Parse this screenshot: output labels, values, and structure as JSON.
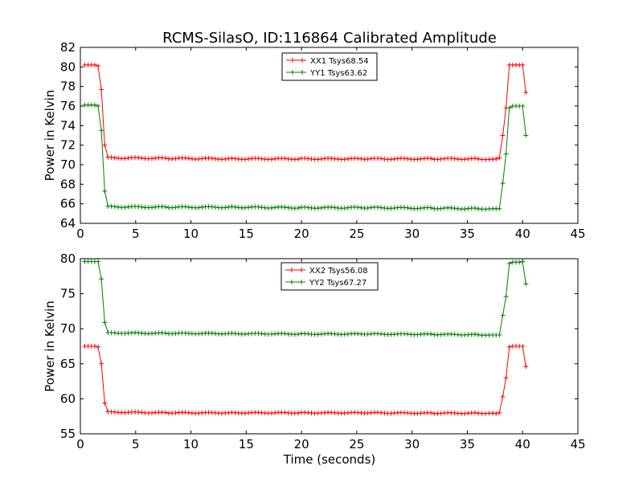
{
  "title": "RCMS-SilasO, ID:116864 Calibrated Amplitude",
  "xlabel": "Time (seconds)",
  "colors": {
    "red": "#ff0000",
    "green": "#008000"
  },
  "chart_data": [
    {
      "type": "line",
      "title": "RCMS-SilasO, ID:116864 Calibrated Amplitude",
      "xlabel": "",
      "ylabel": "Power in Kelvin",
      "xlim": [
        0,
        45
      ],
      "ylim": [
        64,
        82
      ],
      "xticks": [
        0,
        5,
        10,
        15,
        20,
        25,
        30,
        35,
        40,
        45
      ],
      "yticks": [
        64,
        66,
        68,
        70,
        72,
        74,
        76,
        78,
        80,
        82
      ],
      "grid": false,
      "legend_position": "top-center",
      "series": [
        {
          "name": "XX1 Tsys68.54",
          "color": "#ff0000",
          "x": [
            0.4,
            0.7,
            1.0,
            1.3,
            1.6,
            1.9,
            2.2,
            2.5,
            8.0,
            14.0,
            20.0,
            26.0,
            32.0,
            36.0,
            37.3,
            37.6,
            37.9,
            38.2,
            38.5,
            38.8,
            39.1,
            39.4,
            39.7,
            40.0,
            40.3
          ],
          "values": [
            80.2,
            80.2,
            80.2,
            80.2,
            80.1,
            77.7,
            72.0,
            70.7,
            70.65,
            70.6,
            70.6,
            70.6,
            70.6,
            70.6,
            70.55,
            70.6,
            70.7,
            73.0,
            75.8,
            80.2,
            80.2,
            80.2,
            80.2,
            80.2,
            77.4
          ]
        },
        {
          "name": "YY1 Tsys63.62",
          "color": "#008000",
          "x": [
            0.4,
            0.7,
            1.0,
            1.3,
            1.6,
            1.9,
            2.2,
            2.5,
            8.0,
            14.0,
            20.0,
            26.0,
            32.0,
            36.0,
            37.3,
            37.6,
            37.9,
            38.2,
            38.5,
            38.8,
            39.1,
            39.4,
            39.7,
            40.0,
            40.3
          ],
          "values": [
            76.1,
            76.1,
            76.1,
            76.1,
            76.0,
            73.5,
            67.3,
            65.7,
            65.65,
            65.65,
            65.6,
            65.6,
            65.55,
            65.5,
            65.5,
            65.5,
            65.5,
            68.1,
            71.1,
            75.8,
            76.0,
            76.0,
            76.0,
            76.0,
            73.0
          ]
        }
      ]
    },
    {
      "type": "line",
      "title": "",
      "xlabel": "Time (seconds)",
      "ylabel": "Power in Kelvin",
      "xlim": [
        0,
        45
      ],
      "ylim": [
        55,
        80
      ],
      "xticks": [
        0,
        5,
        10,
        15,
        20,
        25,
        30,
        35,
        40,
        45
      ],
      "yticks": [
        55,
        60,
        65,
        70,
        75,
        80
      ],
      "grid": false,
      "legend_position": "top-center",
      "series": [
        {
          "name": "XX2 Tsys56.08",
          "color": "#ff0000",
          "x": [
            0.4,
            0.7,
            1.0,
            1.3,
            1.6,
            1.9,
            2.2,
            2.5,
            8.0,
            14.0,
            20.0,
            26.0,
            32.0,
            36.0,
            37.3,
            37.6,
            37.9,
            38.2,
            38.5,
            38.8,
            39.1,
            39.4,
            39.7,
            40.0,
            40.3
          ],
          "values": [
            67.5,
            67.5,
            67.5,
            67.5,
            67.4,
            65.0,
            59.4,
            58.1,
            58.0,
            58.0,
            58.0,
            58.0,
            57.95,
            57.95,
            57.95,
            57.9,
            58.0,
            60.3,
            63.0,
            67.4,
            67.5,
            67.5,
            67.5,
            67.5,
            64.6
          ]
        },
        {
          "name": "YY2 Tsys67.27",
          "color": "#008000",
          "x": [
            0.4,
            0.7,
            1.0,
            1.3,
            1.6,
            1.9,
            2.2,
            2.5,
            8.0,
            14.0,
            20.0,
            26.0,
            32.0,
            36.0,
            37.3,
            37.6,
            37.9,
            38.2,
            38.5,
            38.8,
            39.1,
            39.4,
            39.7,
            40.0,
            40.3
          ],
          "values": [
            79.6,
            79.6,
            79.6,
            79.6,
            79.6,
            77.1,
            70.9,
            69.4,
            69.35,
            69.3,
            69.25,
            69.25,
            69.2,
            69.15,
            69.1,
            69.1,
            69.1,
            71.9,
            74.6,
            79.3,
            79.5,
            79.5,
            79.5,
            79.6,
            76.4
          ]
        }
      ]
    }
  ]
}
